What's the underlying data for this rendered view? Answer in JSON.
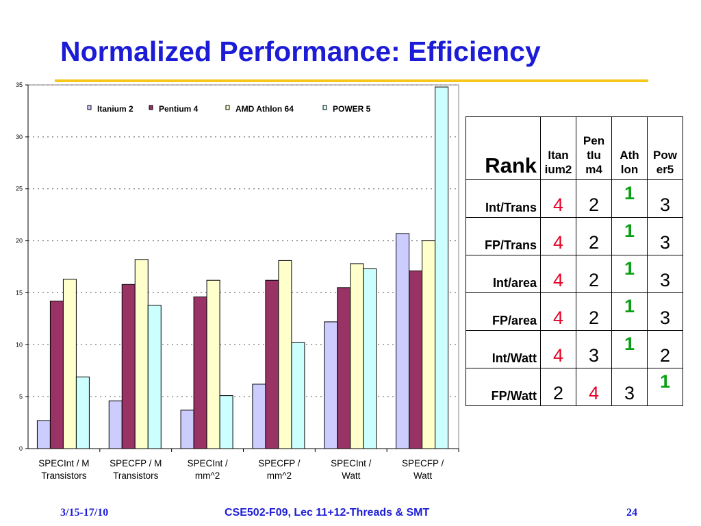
{
  "slide": {
    "title": "Normalized Performance: Efficiency",
    "footer_date": "3/15-17/10",
    "footer_course": "CSE502-F09, Lec 11+12-Threads & SMT",
    "footer_page": "24",
    "accent_color": "#f5c71a",
    "title_color": "#1c1cd6"
  },
  "chart_data": {
    "type": "bar",
    "categories": [
      [
        "SPECInt / M",
        "Transistors"
      ],
      [
        "SPECFP / M",
        "Transistors"
      ],
      [
        "SPECInt /",
        "mm^2"
      ],
      [
        "SPECFP /",
        "mm^2"
      ],
      [
        "SPECInt /",
        "Watt"
      ],
      [
        "SPECFP /",
        "Watt"
      ]
    ],
    "series": [
      {
        "name": "Itanium 2",
        "color": "#ccccff",
        "values": [
          2.7,
          4.6,
          3.7,
          6.2,
          12.2,
          20.7
        ]
      },
      {
        "name": "Pentium 4",
        "color": "#993366",
        "values": [
          14.2,
          15.8,
          14.6,
          16.2,
          15.5,
          17.1
        ]
      },
      {
        "name": "AMD Athlon 64",
        "color": "#ffffcc",
        "values": [
          16.3,
          18.2,
          16.2,
          18.1,
          17.8,
          20.0
        ]
      },
      {
        "name": "POWER 5",
        "color": "#ccffff",
        "values": [
          6.9,
          13.8,
          5.1,
          10.2,
          17.3,
          34.8
        ]
      }
    ],
    "ylim": [
      0,
      35
    ],
    "yticks": [
      0,
      5,
      10,
      15,
      20,
      25,
      30,
      35
    ],
    "grid": true,
    "legend_position": "top"
  },
  "rank_table": {
    "corner": "Rank",
    "headers": [
      [
        "Itan",
        "ium2"
      ],
      [
        "Pen",
        "tIu",
        "m4"
      ],
      [
        "Ath",
        "lon"
      ],
      [
        "Pow",
        "er5"
      ]
    ],
    "rows": [
      {
        "label": "Int/Trans",
        "values": [
          "4",
          "2",
          "1",
          "3"
        ],
        "colors": [
          "red",
          "black",
          "green",
          "black"
        ]
      },
      {
        "label": "FP/Trans",
        "values": [
          "4",
          "2",
          "1",
          "3"
        ],
        "colors": [
          "red",
          "black",
          "green",
          "black"
        ]
      },
      {
        "label": "Int/area",
        "values": [
          "4",
          "2",
          "1",
          "3"
        ],
        "colors": [
          "red",
          "black",
          "green",
          "black"
        ]
      },
      {
        "label": "FP/area",
        "values": [
          "4",
          "2",
          "1",
          "3"
        ],
        "colors": [
          "red",
          "black",
          "green",
          "black"
        ]
      },
      {
        "label": "Int/Watt",
        "values": [
          "4",
          "3",
          "1",
          "2"
        ],
        "colors": [
          "red",
          "black",
          "green",
          "black"
        ]
      },
      {
        "label": "FP/Watt",
        "values": [
          "2",
          "4",
          "3",
          "1"
        ],
        "colors": [
          "black",
          "red",
          "black",
          "green"
        ]
      }
    ]
  }
}
